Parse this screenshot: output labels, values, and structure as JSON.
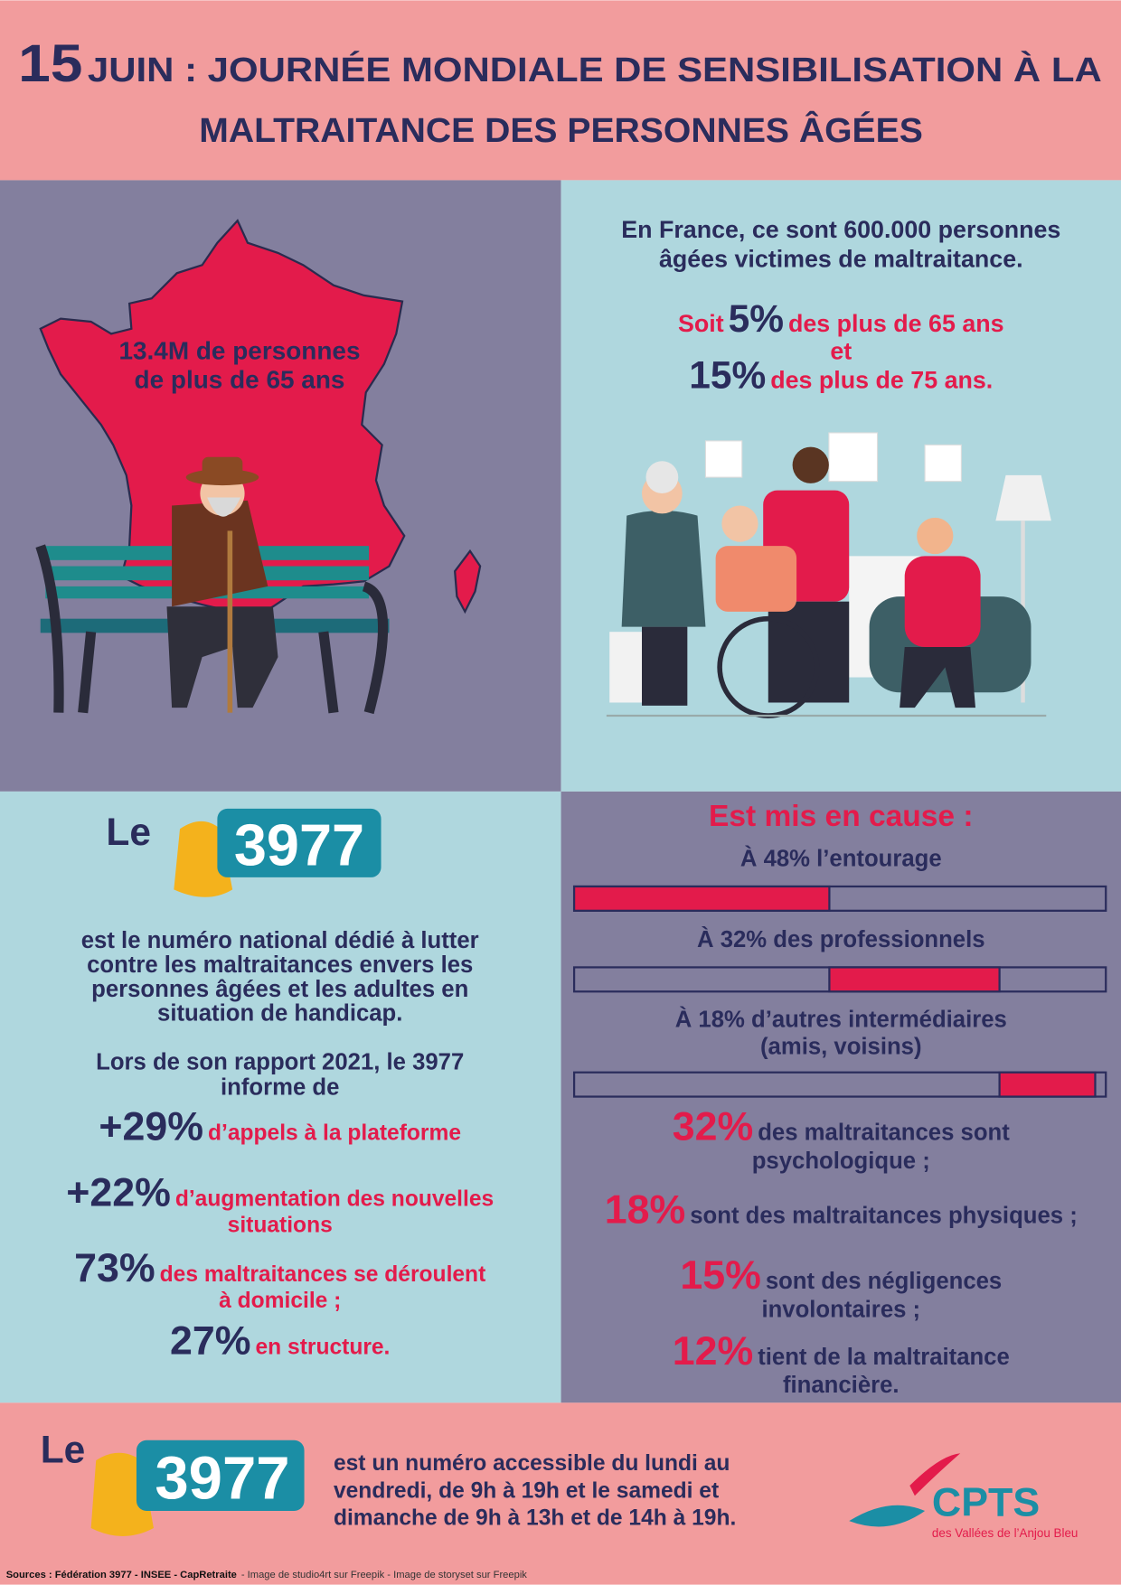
{
  "header": {
    "title_number": "15",
    "title_line1": "JUIN : JOURNÉE MONDIALE DE SENSIBILISATION À LA",
    "title_line2": "MALTRAITANCE DES PERSONNES ÂGÉES"
  },
  "population": {
    "lines": [
      "13.4M  de  personnes",
      "de plus de 65 ans"
    ]
  },
  "france": {
    "lines": [
      "En France, ce sont 600.000 personnes",
      "âgées victimes de maltraitance."
    ],
    "share_65": {
      "prefix": "Soit",
      "value": "5%",
      "suffix": "des plus de 65 ans"
    },
    "connector": "et",
    "share_75": {
      "value": "15%",
      "suffix": "des plus de 75 ans."
    }
  },
  "helpline": {
    "prefix": "Le",
    "number": "3977",
    "description": [
      "est le numéro national dédié à lutter",
      "contre les maltraitances envers les",
      "personnes âgées et les adultes en",
      "situation de handicap."
    ],
    "report": [
      "Lors de son rapport 2021, le 3977",
      "informe de"
    ],
    "stats": [
      {
        "value": "+29%",
        "text": [
          "d’appels à la plateforme"
        ]
      },
      {
        "value": "+22%",
        "text": [
          "d’augmentation des nouvelles",
          "situations"
        ]
      },
      {
        "value": "73%",
        "text": [
          "des maltraitances se déroulent",
          "à domicile ;"
        ]
      },
      {
        "value": "27%",
        "text": [
          "en structure."
        ]
      }
    ]
  },
  "perpetrators": {
    "title": "Est mis en cause :",
    "xlim": [
      0,
      100
    ],
    "items": [
      {
        "label": [
          "À 48% l’entourage"
        ],
        "value": 48
      },
      {
        "label": [
          "À 32% des professionnels"
        ],
        "value": 32
      },
      {
        "label": [
          "À 18% d’autres intermédiaires",
          "(amis, voisins)"
        ],
        "value": 18
      }
    ]
  },
  "abuse_types": [
    {
      "value": "32%",
      "text": [
        "des maltraitances sont",
        "psychologique ;"
      ]
    },
    {
      "value": "18%",
      "text": [
        "sont des maltraitances physiques ;"
      ]
    },
    {
      "value": "15%",
      "text": [
        "sont des négligences",
        "involontaires ;"
      ]
    },
    {
      "value": "12%",
      "text": [
        "tient de la maltraitance",
        "financière."
      ]
    }
  ],
  "footer": {
    "prefix": "Le",
    "number": "3977",
    "text": [
      "est un numéro accessible du lundi au",
      "vendredi, de 9h à 19h et le samedi et",
      "dimanche de 9h à 13h et de 14h à 19h."
    ],
    "logo": {
      "name": "CPTS",
      "subtitle": "des Vallées de l’Anjou Bleu"
    }
  },
  "sources": {
    "bold": "Sources : Fédération 3977 - INSEE - CapRetraite",
    "rest": "- Image de studio4rt sur Freepik - Image de storyset sur Freepik"
  }
}
